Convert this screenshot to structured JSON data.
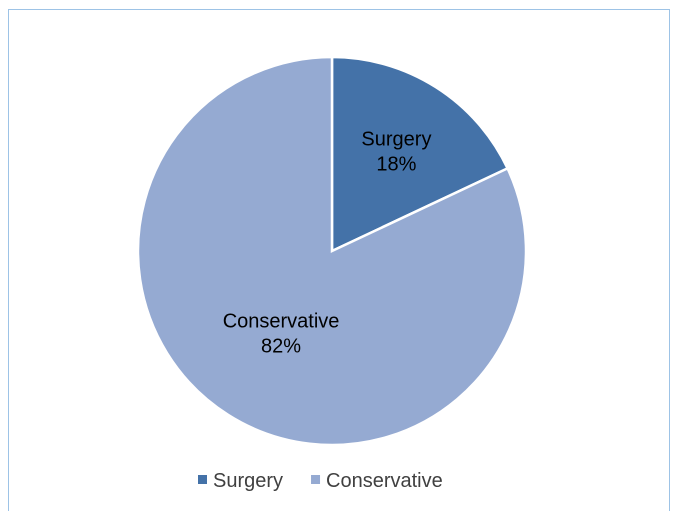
{
  "chart_data": {
    "type": "pie",
    "title": "",
    "series": [
      {
        "name": "Surgery",
        "value": 18,
        "label": "18%",
        "color": "#4472a8"
      },
      {
        "name": "Conservative",
        "value": 82,
        "label": "82%",
        "color": "#95aad2"
      }
    ],
    "legend_position": "bottom",
    "start_angle": "12 o'clock",
    "direction": "clockwise"
  }
}
